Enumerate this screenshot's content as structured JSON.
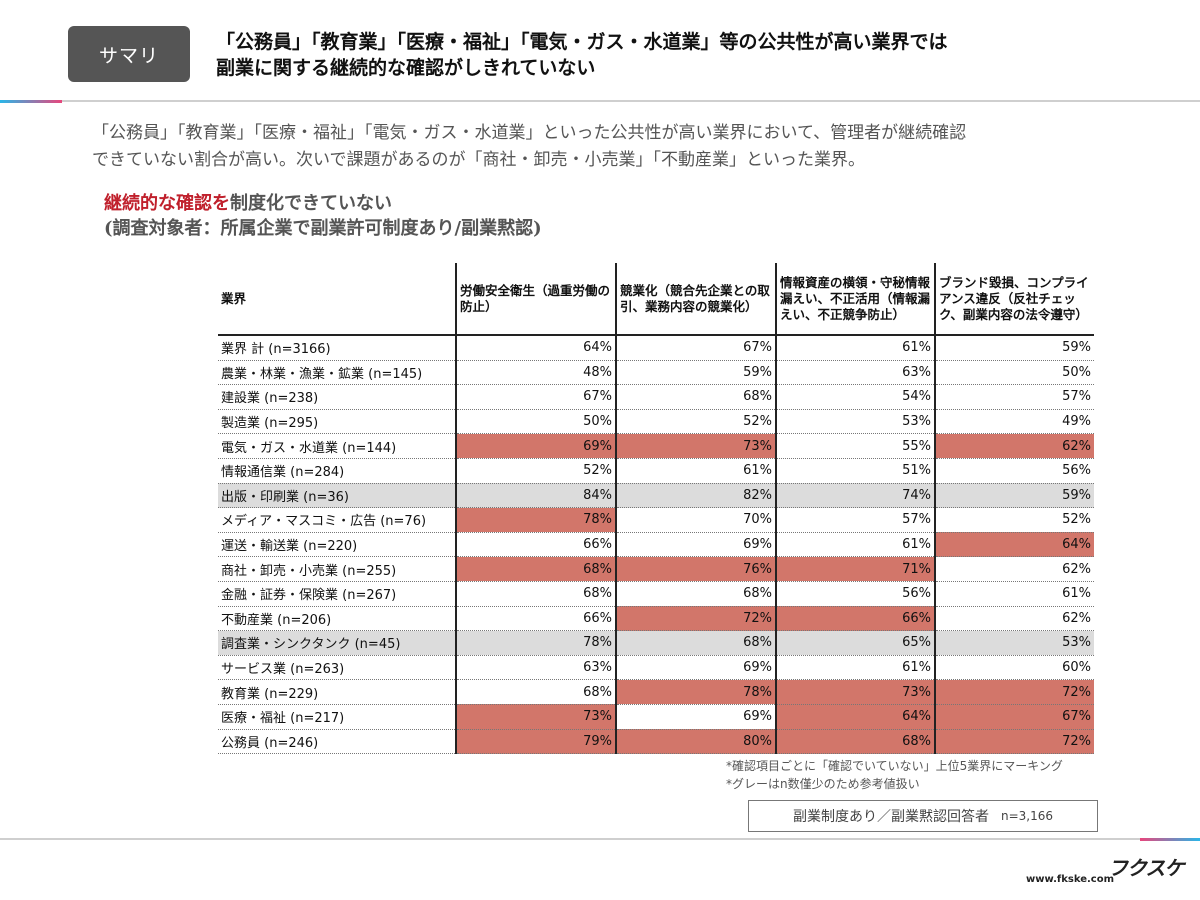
{
  "badge": "サマリ",
  "title": {
    "line1": "「公務員」「教育業」「医療・福祉」「電気・ガス・水道業」等の公共性が高い業界では",
    "line2": "副業に関する継続的な確認がしきれていない"
  },
  "description": {
    "line1": "「公務員」「教育業」「医療・福祉」「電気・ガス・水道業」といった公共性が高い業界において、管理者が継続確認",
    "line2": "できていない割合が高い。次いで課題があるのが「商社・卸売・小売業」「不動産業」といった業界。"
  },
  "subheading": {
    "highlight": "継続的な確認を",
    "rest": "制度化できていない",
    "line2": "(調査対象者：所属企業で副業許可制度あり/副業黙認)"
  },
  "colors": {
    "marked": "#d2766a",
    "gray_row": "#dcdcdc"
  },
  "table": {
    "headers": [
      "業界",
      "労働安全衛生（過重労働の防止）",
      "競業化（競合先企業との取引、業務内容の競業化）",
      "情報資産の横領・守秘情報漏えい、不正活用（情報漏えい、不正競争防止）",
      "ブランド毀損、コンプライアンス違反（反社チェック、副業内容の法令遵守）"
    ],
    "rows": [
      {
        "industry": "業界 計 (n=3166)",
        "values": [
          "64%",
          "67%",
          "61%",
          "59%"
        ],
        "marked": [
          false,
          false,
          false,
          false
        ],
        "gray": false
      },
      {
        "industry": "農業・林業・漁業・鉱業 (n=145)",
        "values": [
          "48%",
          "59%",
          "63%",
          "50%"
        ],
        "marked": [
          false,
          false,
          false,
          false
        ],
        "gray": false
      },
      {
        "industry": "建設業 (n=238)",
        "values": [
          "67%",
          "68%",
          "54%",
          "57%"
        ],
        "marked": [
          false,
          false,
          false,
          false
        ],
        "gray": false
      },
      {
        "industry": "製造業 (n=295)",
        "values": [
          "50%",
          "52%",
          "53%",
          "49%"
        ],
        "marked": [
          false,
          false,
          false,
          false
        ],
        "gray": false
      },
      {
        "industry": "電気・ガス・水道業 (n=144)",
        "values": [
          "69%",
          "73%",
          "55%",
          "62%"
        ],
        "marked": [
          true,
          true,
          false,
          true
        ],
        "gray": false
      },
      {
        "industry": "情報通信業 (n=284)",
        "values": [
          "52%",
          "61%",
          "51%",
          "56%"
        ],
        "marked": [
          false,
          false,
          false,
          false
        ],
        "gray": false
      },
      {
        "industry": "出版・印刷業 (n=36)",
        "values": [
          "84%",
          "82%",
          "74%",
          "59%"
        ],
        "marked": [
          false,
          false,
          false,
          false
        ],
        "gray": true
      },
      {
        "industry": "メディア・マスコミ・広告 (n=76)",
        "values": [
          "78%",
          "70%",
          "57%",
          "52%"
        ],
        "marked": [
          true,
          false,
          false,
          false
        ],
        "gray": false
      },
      {
        "industry": "運送・輸送業 (n=220)",
        "values": [
          "66%",
          "69%",
          "61%",
          "64%"
        ],
        "marked": [
          false,
          false,
          false,
          true
        ],
        "gray": false
      },
      {
        "industry": "商社・卸売・小売業 (n=255)",
        "values": [
          "68%",
          "76%",
          "71%",
          "62%"
        ],
        "marked": [
          true,
          true,
          true,
          false
        ],
        "gray": false
      },
      {
        "industry": "金融・証券・保険業 (n=267)",
        "values": [
          "68%",
          "68%",
          "56%",
          "61%"
        ],
        "marked": [
          false,
          false,
          false,
          false
        ],
        "gray": false
      },
      {
        "industry": "不動産業 (n=206)",
        "values": [
          "66%",
          "72%",
          "66%",
          "62%"
        ],
        "marked": [
          false,
          true,
          true,
          false
        ],
        "gray": false
      },
      {
        "industry": "調査業・シンクタンク (n=45)",
        "values": [
          "78%",
          "68%",
          "65%",
          "53%"
        ],
        "marked": [
          false,
          false,
          false,
          false
        ],
        "gray": true
      },
      {
        "industry": "サービス業 (n=263)",
        "values": [
          "63%",
          "69%",
          "61%",
          "60%"
        ],
        "marked": [
          false,
          false,
          false,
          false
        ],
        "gray": false
      },
      {
        "industry": "教育業 (n=229)",
        "values": [
          "68%",
          "78%",
          "73%",
          "72%"
        ],
        "marked": [
          false,
          true,
          true,
          true
        ],
        "gray": false
      },
      {
        "industry": "医療・福祉 (n=217)",
        "values": [
          "73%",
          "69%",
          "64%",
          "67%"
        ],
        "marked": [
          true,
          false,
          true,
          true
        ],
        "gray": false
      },
      {
        "industry": "公務員 (n=246)",
        "values": [
          "79%",
          "80%",
          "68%",
          "72%"
        ],
        "marked": [
          true,
          true,
          true,
          true
        ],
        "gray": false
      }
    ]
  },
  "notes": [
    "*確認項目ごとに「確認でいていない」上位5業界にマーキング",
    "*グレーはn数僅少のため参考値扱い"
  ],
  "respondents": {
    "label": "副業制度あり／副業黙認回答者",
    "n": "n=3,166"
  },
  "footer": {
    "logo": "フクスケ",
    "url": "www.fkske.com"
  }
}
